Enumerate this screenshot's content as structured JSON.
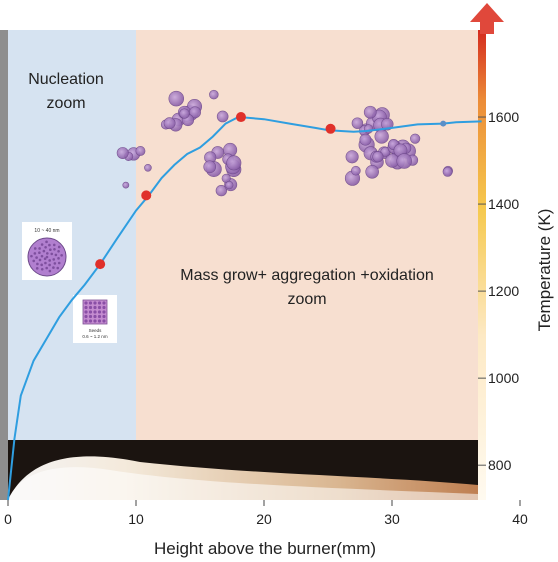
{
  "chart_data": {
    "type": "line",
    "xlabel": "Height above the burner(mm)",
    "ylabel": "Temperature (K)",
    "xlim": [
      0,
      40
    ],
    "ylim": [
      720,
      1800
    ],
    "x_ticks": [
      0,
      10,
      20,
      30,
      40
    ],
    "y_ticks": [
      800,
      1000,
      1200,
      1400,
      1600
    ],
    "x_tick_labels": [
      "0",
      "10",
      "20",
      "30",
      "40"
    ],
    "y_tick_labels": [
      "800",
      "1000",
      "1200",
      "1400",
      "1600"
    ],
    "grid": false,
    "zones": [
      {
        "label_line1": "Nucleation",
        "label_line2": "zoom",
        "x_start": 0,
        "x_end": 10,
        "color": "#d6e3f1",
        "label_color": "#d93535"
      },
      {
        "label_line1": "Mass grow+ aggregation +oxidation",
        "label_line2": "zoom",
        "x_start": 10,
        "x_end": 37,
        "color": "#f7dfd0",
        "label_color": "#d93535"
      }
    ],
    "series": [
      {
        "x": [
          0,
          0.5,
          1,
          2,
          3,
          4,
          5,
          6,
          7.2,
          8.5,
          10,
          11,
          12,
          13,
          14,
          15,
          16,
          17,
          18,
          20,
          22,
          24,
          25,
          26,
          27,
          28,
          30,
          32,
          34,
          35,
          37
        ],
        "y": [
          720,
          860,
          960,
          1040,
          1090,
          1140,
          1180,
          1215,
          1262,
          1320,
          1385,
          1420,
          1460,
          1490,
          1515,
          1530,
          1555,
          1585,
          1600,
          1595,
          1585,
          1575,
          1570,
          1568,
          1566,
          1568,
          1575,
          1583,
          1585,
          1588,
          1590
        ],
        "color": "#2f9ee0"
      }
    ],
    "markers": {
      "x": [
        7.2,
        10.8,
        18.2,
        25.2
      ],
      "y": [
        1262,
        1420,
        1600,
        1573
      ],
      "color": "#e0302a"
    },
    "colorbar": {
      "min": 720,
      "max": 1800,
      "top_color": "#d42a1e",
      "mid_color": "#f4c44a",
      "bottom_color": "#fff3dc"
    },
    "particle_insets": [
      {
        "top_label": "10 ~ 40 nm"
      },
      {
        "bottom_label_line1": "Seeds",
        "bottom_label_line2": "0.6 ~ 1.2 nm"
      }
    ],
    "flame_band_color": "#fff0dc",
    "particle_color": "#a67cc0"
  }
}
